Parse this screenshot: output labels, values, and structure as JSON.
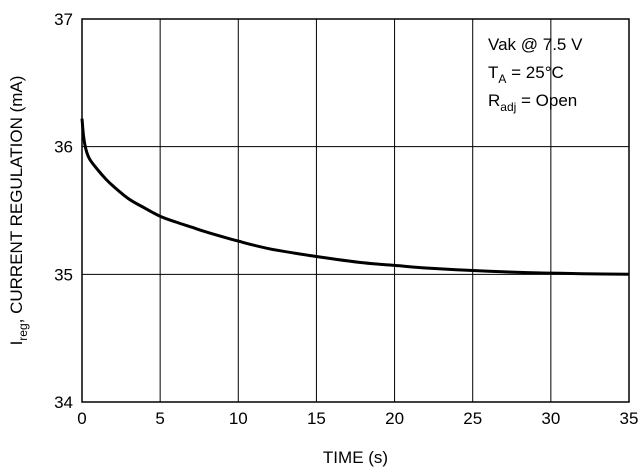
{
  "chart_data": {
    "type": "line",
    "title": "",
    "xlabel": "TIME (s)",
    "ylabel": {
      "main": "I",
      "sub": "reg",
      "rest": ", CURRENT REGULATION (mA)"
    },
    "xlim": [
      0,
      35
    ],
    "ylim": [
      34,
      37
    ],
    "xticks": [
      0,
      5,
      10,
      15,
      20,
      25,
      30,
      35
    ],
    "yticks": [
      34,
      35,
      36,
      37
    ],
    "grid": true,
    "line_color": "#000000",
    "annotations": [
      {
        "main": "Vak @ 7.5 V",
        "sub": "",
        "rest": ""
      },
      {
        "main": "T",
        "sub": "A",
        "rest": " = 25°C"
      },
      {
        "main": "R",
        "sub": "adj",
        "rest": " = Open"
      }
    ],
    "series": [
      {
        "x": [
          0,
          0.1,
          0.25,
          0.5,
          1,
          1.5,
          2,
          3,
          4,
          5,
          6,
          7,
          8,
          10,
          12,
          15,
          18,
          20,
          22,
          25,
          28,
          30,
          32,
          35
        ],
        "values": [
          36.22,
          36.08,
          35.98,
          35.9,
          35.82,
          35.75,
          35.69,
          35.59,
          35.52,
          35.455,
          35.41,
          35.37,
          35.33,
          35.26,
          35.2,
          35.14,
          35.09,
          35.07,
          35.05,
          35.03,
          35.015,
          35.01,
          35.005,
          35.0
        ]
      }
    ]
  }
}
